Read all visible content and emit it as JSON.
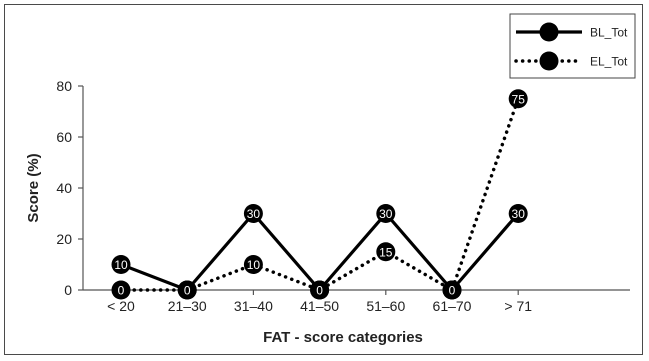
{
  "chart_data": {
    "type": "line",
    "title": "",
    "xlabel": "FAT - score categories",
    "ylabel": "Score (%)",
    "ylim": [
      0,
      80
    ],
    "yticks": [
      0,
      20,
      40,
      60,
      80
    ],
    "categories": [
      "< 20",
      "21–30",
      "31–40",
      "41–50",
      "51–60",
      "61–70",
      "> 71"
    ],
    "series": [
      {
        "name": "BL_Tot",
        "style": "solid",
        "color": "#000000",
        "values": [
          10,
          0,
          30,
          0,
          30,
          0,
          30
        ]
      },
      {
        "name": "EL_Tot",
        "style": "dotted",
        "color": "#000000",
        "values": [
          0,
          0,
          10,
          0,
          15,
          0,
          75
        ]
      }
    ],
    "legend_position": "top-right",
    "data_labels": true,
    "grid": false
  }
}
